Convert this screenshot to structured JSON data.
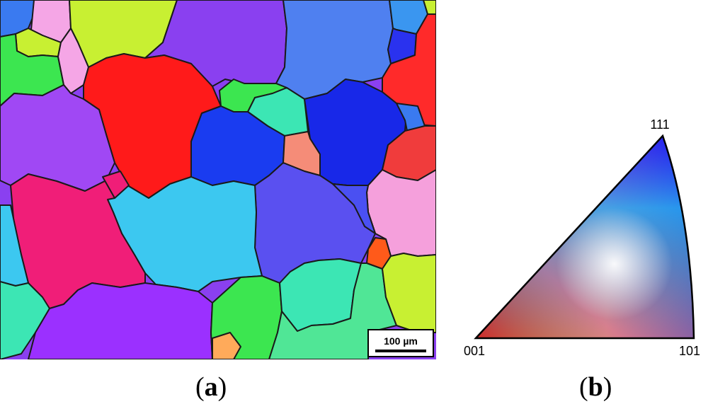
{
  "panel_a": {
    "caption_open": "(",
    "caption_letter": "a",
    "caption_close": ")",
    "scale_bar_label": "100 µm"
  },
  "panel_b": {
    "caption_open": "(",
    "caption_letter": "b",
    "caption_close": ")",
    "corner_labels": {
      "top": "111",
      "bottom_left": "001",
      "bottom_right": "101"
    },
    "corner_colors": {
      "001": "#ff0000",
      "101": "#00e000",
      "111": "#0000ff"
    }
  },
  "grain_colors": {
    "red": "#ff1a1a",
    "blue": "#1a3cf0",
    "violet": "#9b30ff",
    "purple": "#8a40f0",
    "sky": "#3cc8f0",
    "magenta": "#f01e78",
    "lime": "#c8f032",
    "green": "#3ce650",
    "cyan": "#3ce6b4",
    "pink": "#f5a0dc",
    "salmon": "#f58c78",
    "orange": "#ff6a1a",
    "indigo": "#5a50f0",
    "periwinkle": "#5078f0"
  }
}
